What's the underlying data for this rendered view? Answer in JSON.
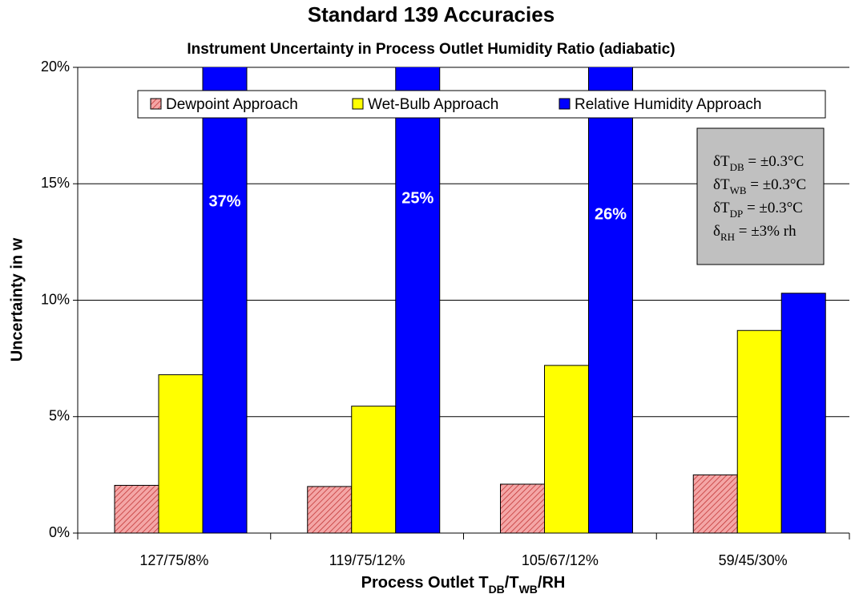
{
  "chart_data": {
    "type": "bar",
    "title": "Standard 139 Accuracies",
    "subtitle": "Instrument Uncertainty in Process Outlet Humidity Ratio (adiabatic)",
    "y_label": "Uncertainty in w",
    "x_label_parts": [
      {
        "text": "Process Outlet T"
      },
      {
        "text": "DB",
        "sub": true
      },
      {
        "text": "/T"
      },
      {
        "text": "WB",
        "sub": true
      },
      {
        "text": "/RH"
      }
    ],
    "categories": [
      "127/75/8%",
      "119/75/12%",
      "105/67/12%",
      "59/45/30%"
    ],
    "series": [
      {
        "name": "Dewpoint Approach",
        "color": "#f4a6a6",
        "pattern": "hatch",
        "values": [
          2.05,
          2.0,
          2.1,
          2.5
        ]
      },
      {
        "name": "Wet-Bulb Approach",
        "color": "#ffff00",
        "values": [
          6.8,
          5.45,
          7.2,
          8.7
        ]
      },
      {
        "name": "Relative Humidity Approach",
        "color": "#0000ff",
        "values": [
          37,
          25,
          26,
          10.3
        ],
        "value_labels": [
          "37%",
          "25%",
          "26%",
          null
        ]
      }
    ],
    "ylim": [
      0,
      20
    ],
    "yticks": [
      {
        "value": 0,
        "label": "0%"
      },
      {
        "value": 5,
        "label": "5%"
      },
      {
        "value": 10,
        "label": "10%"
      },
      {
        "value": 15,
        "label": "15%"
      },
      {
        "value": 20,
        "label": "20%"
      }
    ],
    "grid": true,
    "legend": "top",
    "annotation_lines": [
      {
        "main": "δT",
        "sub": "DB",
        "rest": " = ±0.3°C"
      },
      {
        "main": "δT",
        "sub": "WB",
        "rest": " = ±0.3°C"
      },
      {
        "main": "δT",
        "sub": "DP",
        "rest": " = ±0.3°C"
      },
      {
        "main": "δ",
        "sub": "RH",
        "rest": " = ±3% rh"
      }
    ]
  }
}
